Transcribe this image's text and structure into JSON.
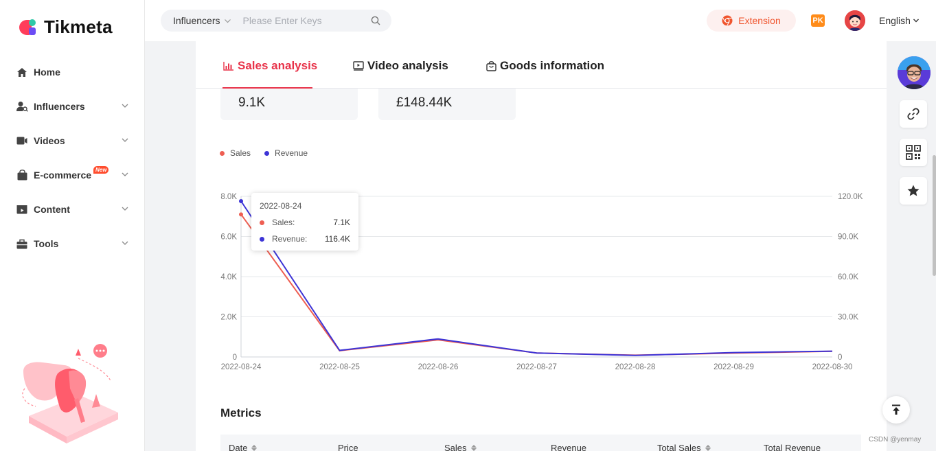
{
  "brand": {
    "name": "Tikmeta"
  },
  "sidebar": {
    "items": [
      {
        "label": "Home"
      },
      {
        "label": "Influencers"
      },
      {
        "label": "Videos"
      },
      {
        "label": "E-commerce",
        "badge": "New"
      },
      {
        "label": "Content"
      },
      {
        "label": "Tools"
      }
    ]
  },
  "topbar": {
    "search_category": "Influencers",
    "search_placeholder": "Please Enter Keys",
    "extension_label": "Extension",
    "pk_label": "PK",
    "language": "English"
  },
  "tabs": [
    {
      "label": "Sales analysis",
      "active": true
    },
    {
      "label": "Video analysis",
      "active": false
    },
    {
      "label": "Goods information",
      "active": false
    }
  ],
  "stats": {
    "sales_value": "9.1K",
    "revenue_value": "£148.44K"
  },
  "tooltip": {
    "date": "2022-08-24",
    "rows": [
      {
        "label": "Sales:",
        "value": "7.1K"
      },
      {
        "label": "Revenue:",
        "value": "116.4K"
      }
    ]
  },
  "chart_data": {
    "type": "line",
    "x": [
      "2022-08-24",
      "2022-08-25",
      "2022-08-26",
      "2022-08-27",
      "2022-08-28",
      "2022-08-29",
      "2022-08-30"
    ],
    "series": [
      {
        "name": "Sales",
        "axis": "left",
        "color": "#ee5e52",
        "values": [
          7100,
          310,
          850,
          200,
          90,
          190,
          280
        ]
      },
      {
        "name": "Revenue",
        "axis": "right",
        "color": "#3d34d6",
        "values": [
          116400,
          4900,
          13500,
          2900,
          1200,
          3300,
          4300
        ]
      }
    ],
    "y_left": {
      "min": 0,
      "max": 8000,
      "ticks": [
        "0",
        "2.0K",
        "4.0K",
        "6.0K",
        "8.0K"
      ]
    },
    "y_right": {
      "min": 0,
      "max": 120000,
      "ticks": [
        "0",
        "30.0K",
        "60.0K",
        "90.0K",
        "120.0K"
      ]
    },
    "legend": [
      "Sales",
      "Revenue"
    ]
  },
  "metrics": {
    "title": "Metrics",
    "columns": [
      "Date",
      "Price",
      "Sales",
      "Revenue",
      "Total Sales",
      "Total Revenue"
    ],
    "sortable": [
      true,
      false,
      true,
      false,
      true,
      false
    ]
  },
  "watermark": "CSDN @yenmay",
  "colors": {
    "accent": "#e8334a",
    "sales": "#ee5e52",
    "revenue": "#3d34d6"
  }
}
